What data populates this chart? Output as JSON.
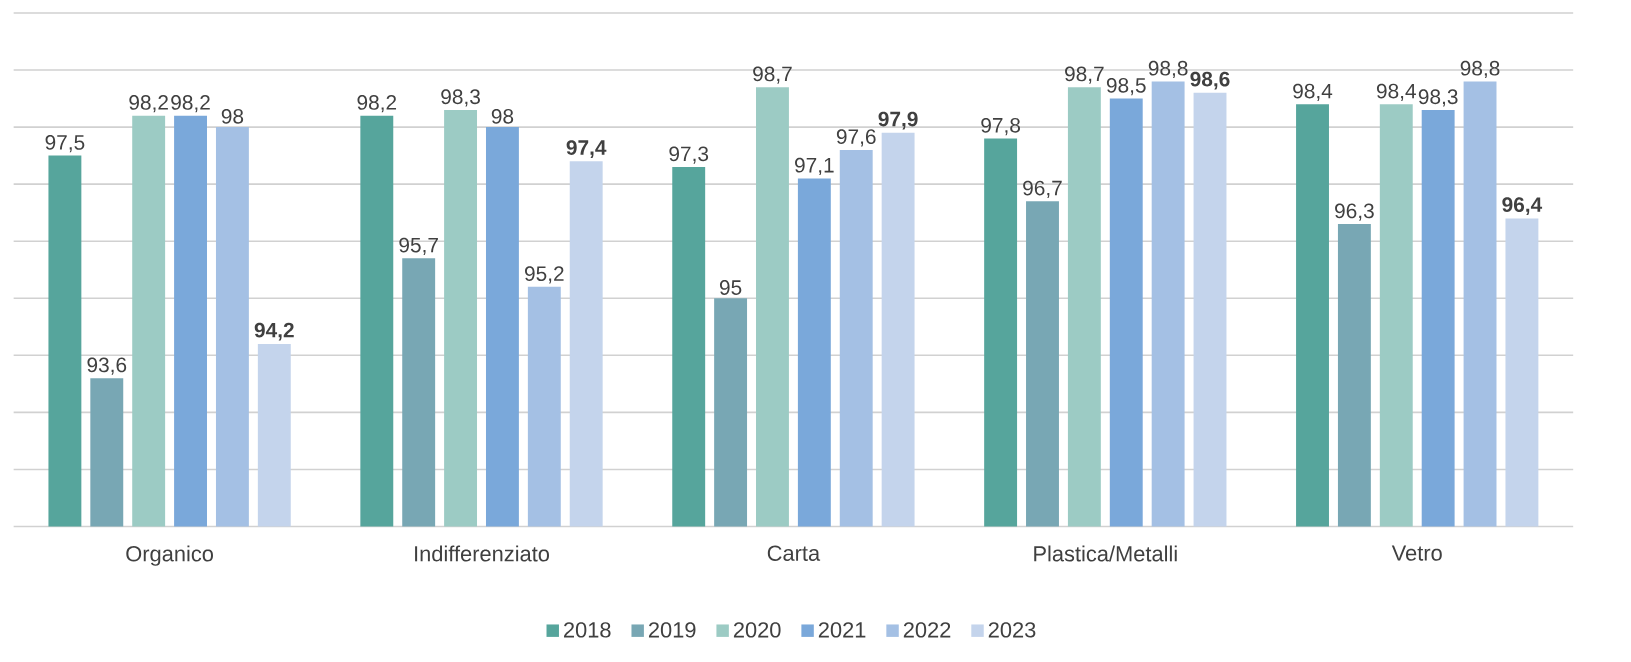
{
  "chart_data": {
    "type": "bar",
    "categories": [
      "Organico",
      "Indifferenziato",
      "Carta",
      "Plastica/Metalli",
      "Vetro"
    ],
    "series": [
      {
        "name": "2018",
        "color": "#56a59c",
        "values": [
          97.5,
          98.2,
          97.3,
          97.8,
          98.4
        ],
        "value_labels": [
          "97,5",
          "98,2",
          "97,3",
          "97,8",
          "98,4"
        ]
      },
      {
        "name": "2019",
        "color": "#78a7b4",
        "values": [
          93.6,
          95.7,
          95,
          96.7,
          96.3
        ],
        "value_labels": [
          "93,6",
          "95,7",
          "95",
          "96,7",
          "96,3"
        ]
      },
      {
        "name": "2020",
        "color": "#9ccbc4",
        "values": [
          98.2,
          98.3,
          98.7,
          98.7,
          98.4
        ],
        "value_labels": [
          "98,2",
          "98,3",
          "98,7",
          "98,7",
          "98,4"
        ]
      },
      {
        "name": "2021",
        "color": "#7aa8da",
        "values": [
          98.2,
          98,
          97.1,
          98.5,
          98.3
        ],
        "value_labels": [
          "98,2",
          "98",
          "97,1",
          "98,5",
          "98,3"
        ]
      },
      {
        "name": "2022",
        "color": "#a4c0e4",
        "values": [
          98,
          95.2,
          97.6,
          98.8,
          98.8
        ],
        "value_labels": [
          "98",
          "95,2",
          "97,6",
          "98,8",
          "98,8"
        ]
      },
      {
        "name": "2023",
        "color": "#c4d4ec",
        "values": [
          94.2,
          97.4,
          97.9,
          98.6,
          96.4
        ],
        "value_labels": [
          "**94,2**",
          "**97,4**",
          "**97,9**",
          "**98,6**",
          "**96,4**"
        ]
      }
    ],
    "ylim": [
      91,
      100
    ],
    "yticks": [
      {
        "value": 91,
        "label": null
      },
      {
        "value": 92,
        "label": null
      },
      {
        "value": 93,
        "label": null
      },
      {
        "value": 94,
        "label": null
      },
      {
        "value": 95,
        "label": null
      },
      {
        "value": 96,
        "label": null
      },
      {
        "value": 97,
        "label": null
      },
      {
        "value": 98,
        "label": null
      },
      {
        "value": 99,
        "label": null
      },
      {
        "value": 100,
        "label": null
      }
    ],
    "grid": "y",
    "legend": "bottom",
    "tick_labels": "x"
  }
}
